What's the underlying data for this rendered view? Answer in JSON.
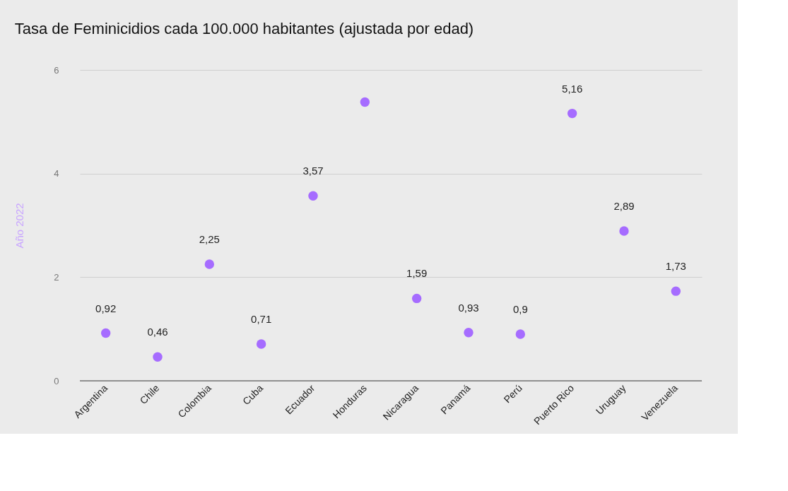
{
  "chart_data": {
    "type": "scatter",
    "title": "Tasa de Feminicidios cada 100.000 habitantes (ajustada por edad)",
    "ylabel": "Año 2022",
    "categories": [
      "Argentina",
      "Chile",
      "Colombia",
      "Cuba",
      "Ecuador",
      "Honduras",
      "Nicaragua",
      "Panamá",
      "Perú",
      "Puerto Rico",
      "Uruguay",
      "Venezuela"
    ],
    "series": [
      {
        "color": "#a66cff",
        "values": [
          0.92,
          0.46,
          2.25,
          0.71,
          3.57,
          5.38,
          1.59,
          0.93,
          0.9,
          5.16,
          2.89,
          1.73
        ],
        "value_labels": [
          "0,92",
          "0,46",
          "2,25",
          "0,71",
          "3,57",
          null,
          "1,59",
          "0,93",
          "0,9",
          "5,16",
          "2,89",
          "1,73"
        ]
      }
    ],
    "ylim": [
      0,
      6
    ],
    "yticks": [
      0,
      2,
      4,
      6
    ],
    "grid": "y",
    "marker": "circle"
  }
}
